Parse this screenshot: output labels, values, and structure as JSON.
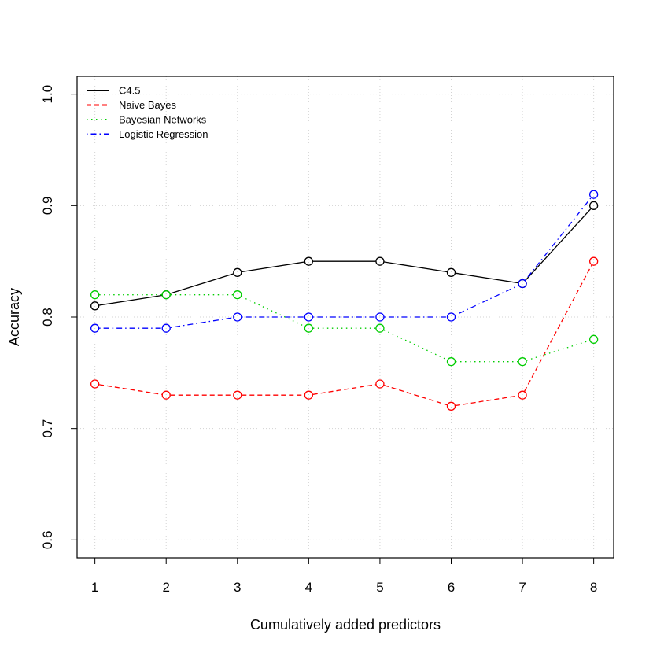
{
  "chart_data": {
    "type": "line",
    "title": "",
    "xlabel": "Cumulatively added predictors",
    "ylabel": "Accuracy",
    "x": [
      1,
      2,
      3,
      4,
      5,
      6,
      7,
      8
    ],
    "x_ticks": [
      "1",
      "2",
      "3",
      "4",
      "5",
      "6",
      "7",
      "8"
    ],
    "y_ticks": [
      "0.6",
      "0.7",
      "0.8",
      "0.9",
      "1.0"
    ],
    "xlim": [
      0.75,
      8.28
    ],
    "ylim": [
      0.584,
      1.016
    ],
    "grid": true,
    "legend_position": "top-left",
    "series": [
      {
        "name": "C4.5",
        "color": "#000000",
        "dash": "solid",
        "values": [
          0.81,
          0.82,
          0.84,
          0.85,
          0.85,
          0.84,
          0.83,
          0.9
        ]
      },
      {
        "name": "Naive Bayes",
        "color": "#ff0000",
        "dash": "dashed",
        "values": [
          0.74,
          0.73,
          0.73,
          0.73,
          0.74,
          0.72,
          0.73,
          0.85
        ]
      },
      {
        "name": "Bayesian Networks",
        "color": "#00cd00",
        "dash": "dotted",
        "values": [
          0.82,
          0.82,
          0.82,
          0.79,
          0.79,
          0.76,
          0.76,
          0.78
        ]
      },
      {
        "name": "Logistic Regression",
        "color": "#0000ff",
        "dash": "dotdash",
        "values": [
          0.79,
          0.79,
          0.8,
          0.8,
          0.8,
          0.8,
          0.83,
          0.91
        ]
      }
    ]
  }
}
